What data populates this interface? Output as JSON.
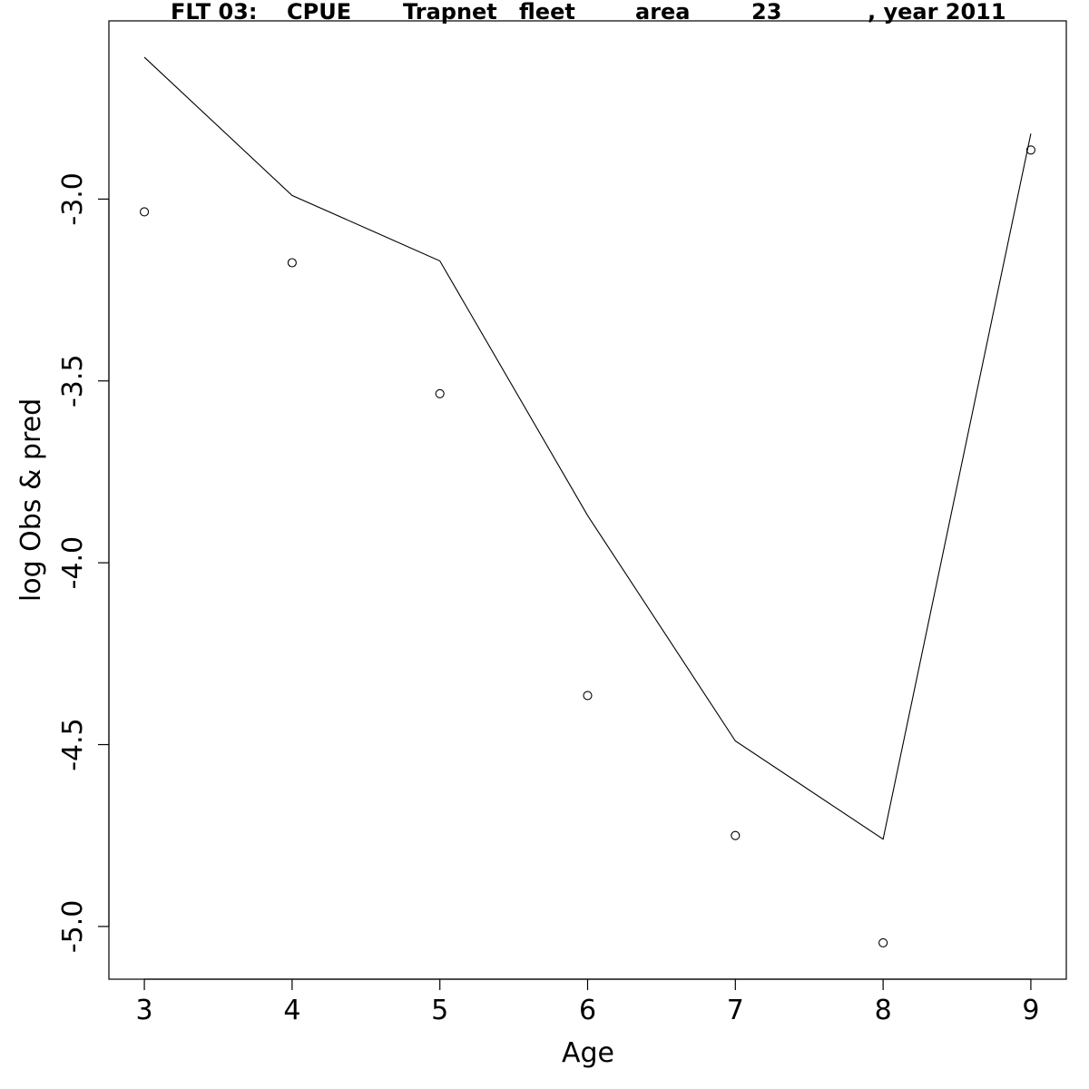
{
  "chart_data": {
    "type": "line",
    "title_segments": [
      "FLT 03:",
      "CPUE",
      "Trapnet",
      "fleet",
      "area",
      "23",
      ", year 2011"
    ],
    "xlabel": "Age",
    "ylabel": "log Obs & pred",
    "x_ticks": [
      "3",
      "4",
      "5",
      "6",
      "7",
      "8",
      "9"
    ],
    "y_ticks": [
      "-3.0",
      "-3.5",
      "-4.0",
      "-4.5",
      "-5.0"
    ],
    "xlim": [
      2.76,
      9.24
    ],
    "ylim": [
      -5.145,
      -2.51
    ],
    "series": [
      {
        "kind": "line",
        "x": [
          3,
          4,
          5,
          6,
          7,
          8,
          9
        ],
        "y": [
          -2.61,
          -2.99,
          -3.17,
          -3.87,
          -4.49,
          -4.76,
          -2.82
        ],
        "color": "#000000"
      },
      {
        "kind": "points",
        "x": [
          3,
          4,
          5,
          6,
          7,
          8,
          9
        ],
        "y": [
          -3.035,
          -3.175,
          -3.535,
          -4.365,
          -4.75,
          -5.045,
          -2.865
        ],
        "color": "#000000"
      }
    ]
  }
}
